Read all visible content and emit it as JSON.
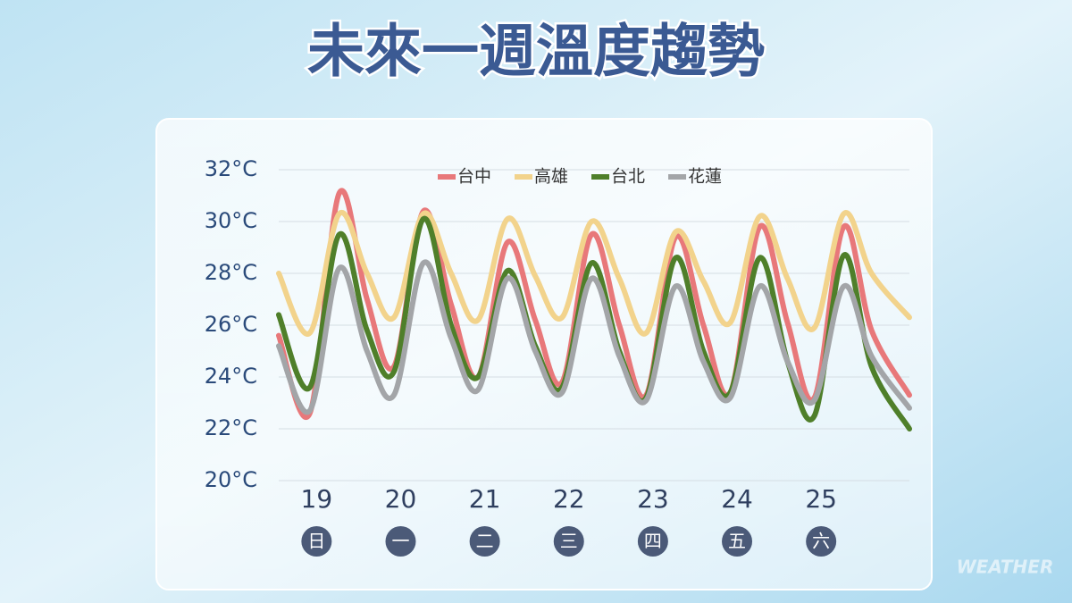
{
  "chart_data": {
    "type": "line",
    "title": "未來一週溫度趨勢",
    "watermark": "WEATHER",
    "x": [
      18.55,
      18.92,
      19.27,
      19.6,
      19.92,
      20.27,
      20.6,
      20.92,
      21.27,
      21.6,
      21.92,
      22.27,
      22.6,
      22.92,
      23.27,
      23.6,
      23.92,
      24.27,
      24.6,
      24.92,
      25.27,
      25.6,
      26.05
    ],
    "xlim": [
      18.55,
      26.05
    ],
    "xticks": [
      19,
      20,
      21,
      22,
      23,
      24,
      25
    ],
    "weekdays": [
      "日",
      "一",
      "二",
      "三",
      "四",
      "五",
      "六"
    ],
    "ylim": [
      20,
      32
    ],
    "yticks": [
      {
        "value": 20,
        "label": "20°C"
      },
      {
        "value": 22,
        "label": "22°C"
      },
      {
        "value": 24,
        "label": "24°C"
      },
      {
        "value": 26,
        "label": "26°C"
      },
      {
        "value": 28,
        "label": "28°C"
      },
      {
        "value": 30,
        "label": "30°C"
      },
      {
        "value": 32,
        "label": "32°C"
      }
    ],
    "grid": true,
    "legend": "top",
    "series": [
      {
        "name": "台中",
        "color": "#e8787a",
        "values": [
          25.6,
          22.6,
          31.1,
          27.0,
          24.4,
          30.4,
          26.8,
          24.0,
          29.2,
          26.2,
          23.8,
          29.5,
          26.0,
          23.3,
          29.4,
          26.0,
          23.4,
          29.8,
          26.1,
          23.2,
          29.8,
          25.8,
          23.3
        ]
      },
      {
        "name": "高雄",
        "color": "#f2d38c",
        "values": [
          28.0,
          25.7,
          30.3,
          28.0,
          26.3,
          30.3,
          28.0,
          26.2,
          30.1,
          27.9,
          26.3,
          30.0,
          27.8,
          25.7,
          29.6,
          27.7,
          26.1,
          30.2,
          27.8,
          25.9,
          30.3,
          28.0,
          26.3
        ]
      },
      {
        "name": "台北",
        "color": "#4f7f2a",
        "values": [
          26.4,
          23.6,
          29.5,
          25.8,
          24.2,
          30.1,
          26.0,
          24.0,
          28.1,
          25.2,
          23.6,
          28.4,
          25.0,
          23.2,
          28.6,
          25.0,
          23.4,
          28.6,
          24.6,
          22.5,
          28.7,
          24.4,
          22.0
        ]
      },
      {
        "name": "花蓮",
        "color": "#a3a5a8",
        "values": [
          25.2,
          22.7,
          28.2,
          25.0,
          23.3,
          28.4,
          25.5,
          23.5,
          27.8,
          25.0,
          23.4,
          27.8,
          24.8,
          23.1,
          27.5,
          24.6,
          23.2,
          27.5,
          24.6,
          23.1,
          27.5,
          24.8,
          22.8
        ]
      }
    ]
  }
}
